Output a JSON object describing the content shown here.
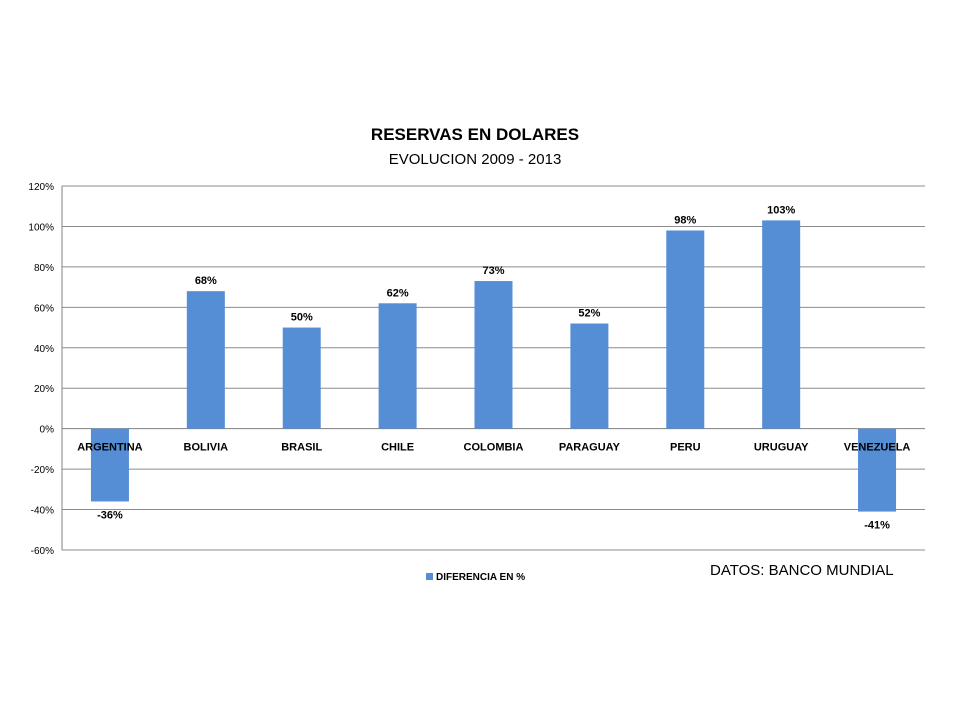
{
  "chart_data": {
    "type": "bar",
    "title": "RESERVAS EN DOLARES",
    "subtitle": "EVOLUCION 2009 - 2013",
    "categories": [
      "ARGENTINA",
      "BOLIVIA",
      "BRASIL",
      "CHILE",
      "COLOMBIA",
      "PARAGUAY",
      "PERU",
      "URUGUAY",
      "VENEZUELA"
    ],
    "series": [
      {
        "name": "DIFERENCIA EN %",
        "values": [
          -36,
          68,
          50,
          62,
          73,
          52,
          98,
          103,
          -41
        ],
        "data_labels": [
          "-36%",
          "68%",
          "50%",
          "62%",
          "73%",
          "52%",
          "98%",
          "103%",
          "-41%"
        ],
        "color": "#558ED5"
      }
    ],
    "ylim": [
      -60,
      120
    ],
    "y_ticks": [
      120,
      100,
      80,
      60,
      40,
      20,
      0,
      -20,
      -40,
      -60
    ],
    "y_tick_labels": [
      "120%",
      "100%",
      "80%",
      "60%",
      "40%",
      "20%",
      "0%",
      "-20%",
      "-40%",
      "-60%"
    ],
    "grid": true,
    "legend": "bottom",
    "annotation": "DATOS: BANCO MUNDIAL"
  }
}
